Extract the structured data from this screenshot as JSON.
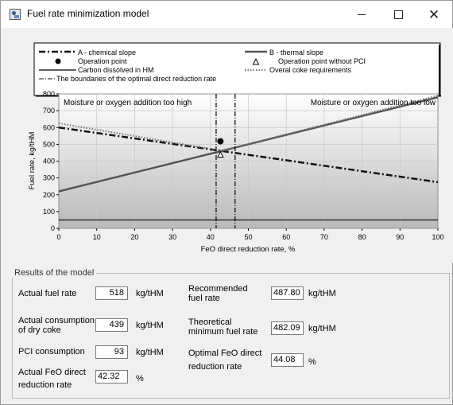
{
  "window": {
    "title": "Fuel rate minimization model"
  },
  "legend": {
    "a": "A - chemical slope",
    "b": "B - thermal slope",
    "op": "Operation point",
    "op_no_pci": "Operation point without PCI",
    "carbon": "Carbon dissolved in HM",
    "coke": "Overal coke requirements",
    "bounds": "The boundaries of the optimal direct reduction rate"
  },
  "chart_data": {
    "type": "line",
    "xlabel": "FeO direct reduction rate, %",
    "ylabel": "Fuel rate, kg/tHM",
    "xlim": [
      0,
      100
    ],
    "ylim": [
      0,
      800
    ],
    "xticks": [
      "0",
      "10",
      "20",
      "30",
      "40",
      "50",
      "60",
      "70",
      "80",
      "90",
      "100"
    ],
    "yticks": [
      "0",
      "100",
      "200",
      "300",
      "400",
      "500",
      "600",
      "700",
      "800"
    ],
    "annotations": {
      "left": "Moisture or oxygen addition too high",
      "right": "Moisture or oxygen addition too low"
    },
    "series": [
      {
        "name": "A - chemical slope",
        "x": [
          0,
          100
        ],
        "y": [
          600,
          275
        ],
        "color": "#111111"
      },
      {
        "name": "B - thermal slope",
        "x": [
          0,
          100
        ],
        "y": [
          220,
          780
        ],
        "color": "#555555"
      },
      {
        "name": "Carbon dissolved in HM",
        "x": [
          0,
          100
        ],
        "y": [
          50,
          50
        ],
        "color": "#000000"
      },
      {
        "name": "Overal coke requirements",
        "x": [
          0,
          43,
          100
        ],
        "y": [
          625,
          462,
          790
        ],
        "color": "#777777"
      }
    ],
    "boundaries": [
      41.5,
      46.5
    ],
    "operation_point": {
      "x": 42.32,
      "y": 518
    },
    "operation_point_without_pci": {
      "x": 42.32,
      "y": 437
    }
  },
  "results": {
    "legend": "Results of the model",
    "actual_fuel_rate_label": "Actual fuel rate",
    "actual_fuel_rate": "518",
    "actual_coke_label_1": "Actual consumption",
    "actual_coke_label_2": "of dry coke",
    "actual_coke": "439",
    "pci_label": "PCI consumption",
    "pci": "93",
    "feo_label_1": "Actual FeO direct",
    "feo_label_2": "reduction rate",
    "feo": "42.32",
    "recommended_label_1": "Recommended",
    "recommended_label_2": "fuel rate",
    "recommended": "487.80",
    "theoretical_label_1": "Theoretical",
    "theoretical_label_2": "minimum fuel rate",
    "theoretical": "482.09",
    "optimal_label_1": "Optimal FeO direct",
    "optimal_label_2": "reduction rate",
    "optimal": "44.08",
    "unit_kg": "kg/tHM",
    "unit_pct": "%"
  }
}
